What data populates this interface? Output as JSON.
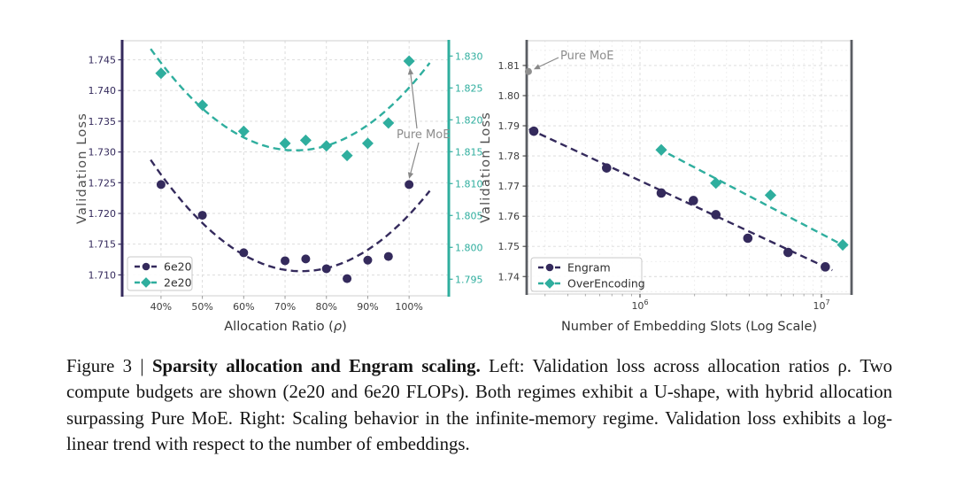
{
  "caption": {
    "prefix": "Figure 3 | ",
    "bold": "Sparsity allocation and Engram scaling.",
    "rest": " Left: Validation loss across allocation ratios ρ. Two compute budgets are shown (2e20 and 6e20 FLOPs). Both regimes exhibit a U-shape, with hybrid allocation surpassing Pure MoE. Right: Scaling behavior in the infinite-memory regime. Validation loss exhibits a log-linear trend with respect to the number of embeddings.",
    "annotation_label": "Pure MoE"
  },
  "colors": {
    "purple": "#342A5C",
    "teal": "#2FAE9E",
    "gray_point": "#8f8f8f",
    "annotation": "#8c8c8c",
    "grid_major": "#d9d9d9",
    "grid_minor": "#ebebeb",
    "spine_light": "#cfcfcf",
    "spine_gray": "#5a5d63",
    "tick_text": "#3d3d3d",
    "axis_label": "#333333",
    "y_label": "#4d4d4d",
    "legend_text": "#2e2e2e",
    "legend_border": "#c8c8c8"
  },
  "chart_data": [
    {
      "type": "scatter",
      "side": "left",
      "xlabel_main": "Allocation Ratio (",
      "xlabel_italic": "ρ",
      "xlabel_close": ")",
      "ylabel_left": "Validation Loss",
      "ylabel_right": "Validation Loss",
      "xlim": [
        30.6,
        109.6
      ],
      "ylim_left": [
        1.7066,
        1.7481
      ],
      "ylim_right": [
        1.7924,
        1.8324
      ],
      "grid": true,
      "x_ticks": {
        "values": [
          40,
          50,
          60,
          70,
          80,
          90,
          100
        ],
        "labels": [
          "40%",
          "50%",
          "60%",
          "70%",
          "80%",
          "90%",
          "100%"
        ]
      },
      "y_ticks_left": {
        "values": [
          1.71,
          1.715,
          1.72,
          1.725,
          1.73,
          1.735,
          1.74,
          1.745
        ],
        "labels": [
          "1.710",
          "1.715",
          "1.720",
          "1.725",
          "1.730",
          "1.735",
          "1.740",
          "1.745"
        ]
      },
      "y_ticks_right": {
        "values": [
          1.795,
          1.8,
          1.805,
          1.81,
          1.815,
          1.82,
          1.825,
          1.83
        ],
        "labels": [
          "1.795",
          "1.800",
          "1.805",
          "1.810",
          "1.815",
          "1.820",
          "1.825",
          "1.830"
        ]
      },
      "legend_position": "lower-left",
      "series": [
        {
          "name": "6e20",
          "axis": "left",
          "marker": "circle",
          "color": "#342A5C",
          "x": [
            40,
            50,
            60,
            70,
            75,
            80,
            85,
            90,
            95,
            100
          ],
          "y": [
            1.7247,
            1.7197,
            1.7136,
            1.7123,
            1.7126,
            1.711,
            1.7094,
            1.7124,
            1.713,
            1.7247
          ],
          "trend": {
            "type": "quadratic",
            "a": 1.36e-05,
            "h": 74,
            "k": 1.7106,
            "x_range": [
              37.5,
              105
            ]
          }
        },
        {
          "name": "2e20",
          "axis": "right",
          "marker": "diamond",
          "color": "#2FAE9E",
          "x": [
            40,
            50,
            60,
            70,
            75,
            80,
            85,
            90,
            95,
            100
          ],
          "y": [
            1.8273,
            1.8223,
            1.8182,
            1.8163,
            1.8168,
            1.8159,
            1.8144,
            1.8163,
            1.8195,
            1.8292
          ],
          "trend": {
            "type": "quadratic",
            "a": 1.3e-05,
            "h": 72.5,
            "k": 1.8152,
            "x_range": [
              37.5,
              105
            ]
          }
        }
      ],
      "annotation": {
        "text": "Pure MoE",
        "points_at": [
          "2e20 @ 100%",
          "6e20 @ 100%"
        ]
      }
    },
    {
      "type": "scatter",
      "side": "right",
      "xscale": "log",
      "xlabel": "Number of Embedding Slots (Log Scale)",
      "ylabel": "Validation Loss",
      "xlim": [
        237500,
        14650000
      ],
      "ylim": [
        1.7342,
        1.8182
      ],
      "grid": true,
      "x_ticks": {
        "values": [
          1000000,
          10000000
        ],
        "labels": [
          "10^6",
          "10^7"
        ]
      },
      "x_minor_ticks": [
        300000,
        400000,
        500000,
        600000,
        700000,
        800000,
        900000,
        2000000,
        3000000,
        4000000,
        5000000,
        6000000,
        7000000,
        8000000,
        9000000
      ],
      "y_ticks": {
        "values": [
          1.74,
          1.75,
          1.76,
          1.77,
          1.78,
          1.79,
          1.8,
          1.81
        ],
        "labels": [
          "1.74",
          "1.75",
          "1.76",
          "1.77",
          "1.78",
          "1.79",
          "1.80",
          "1.81"
        ]
      },
      "y_minor_ticks": [
        1.735,
        1.745,
        1.755,
        1.765,
        1.775,
        1.785,
        1.795,
        1.805,
        1.815
      ],
      "legend_position": "lower-left",
      "series": [
        {
          "name": "Engram",
          "marker": "circle",
          "color": "#342A5C",
          "x": [
            260000,
            655000,
            1310000,
            1970000,
            2620000,
            3930000,
            6550000,
            10500000
          ],
          "y": [
            1.7882,
            1.776,
            1.7677,
            1.7652,
            1.7605,
            1.7527,
            1.748,
            1.7432
          ],
          "trend": {
            "type": "logline",
            "points": [
              [
                245000,
                1.7889
              ],
              [
                11480000,
                1.7421
              ]
            ]
          }
        },
        {
          "name": "OverEncoding",
          "marker": "diamond",
          "color": "#2FAE9E",
          "x": [
            1310000,
            2620000,
            5240000,
            13100000
          ],
          "y": [
            1.782,
            1.771,
            1.767,
            1.7505
          ],
          "trend": {
            "type": "logline",
            "points": [
              [
                1260000,
                1.7825
              ],
              [
                13330000,
                1.7502
              ]
            ]
          }
        }
      ],
      "extra_points": [
        {
          "label": "Pure MoE",
          "x": 240000,
          "y": 1.808,
          "color": "#8f8f8f"
        }
      ],
      "annotation": {
        "text": "Pure MoE",
        "points_at": [
          "extra point"
        ]
      }
    }
  ]
}
